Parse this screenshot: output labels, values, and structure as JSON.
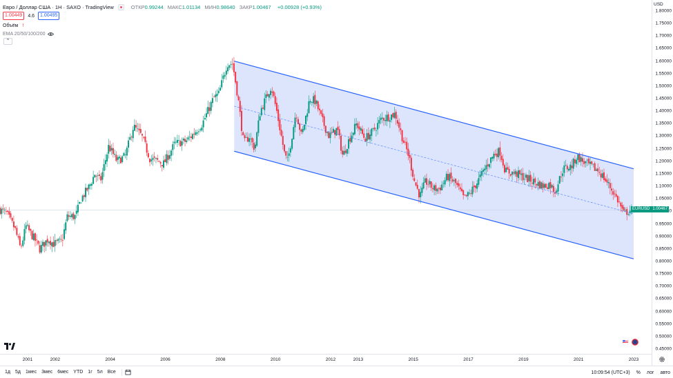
{
  "header": {
    "symbol_title": "Евро / Доллар США · 1Н · SAXO · TradingView",
    "ohlc": {
      "open_label": "ОТКР",
      "open": "0.99244",
      "high_label": "МАКС",
      "high": "1.01134",
      "low_label": "МИН",
      "low": "0.98640",
      "close_label": "ЗАКР",
      "close": "1.00467",
      "change": "+0.00928 (+0.93%)"
    },
    "sell_price": "1.00449",
    "spread": "4.6",
    "buy_price": "1.00495",
    "volume_label": "Объём",
    "indicator_label": "EMA 20/50/100/200"
  },
  "price_scale": {
    "currency": "USD",
    "ticks": [
      "1.80000",
      "1.75000",
      "1.70000",
      "1.65000",
      "1.60000",
      "1.55000",
      "1.50000",
      "1.45000",
      "1.40000",
      "1.35000",
      "1.30000",
      "1.25000",
      "1.20000",
      "1.15000",
      "1.10000",
      "1.05000",
      "1.00000",
      "0.95000",
      "0.90000",
      "0.85000",
      "0.80000",
      "0.75000",
      "0.70000",
      "0.65000",
      "0.60000",
      "0.55000",
      "0.50000",
      "0.45000"
    ],
    "current_label": "EURUSD",
    "current_value": "1.00467"
  },
  "time_axis": {
    "ticks": [
      "2001",
      "2002",
      "2004",
      "2006",
      "2008",
      "2010",
      "2012",
      "2013",
      "2015",
      "2017",
      "2019",
      "2021",
      "2023"
    ]
  },
  "bottom_bar": {
    "ranges": [
      "1д",
      "5д",
      "1мес",
      "3мес",
      "6мес",
      "YTD",
      "1г",
      "5л",
      "Все"
    ],
    "clock": "10:09:54 (UTC+3)",
    "percent": "%",
    "log": "лог",
    "auto": "авто"
  },
  "colors": {
    "up": "#089981",
    "down": "#f23645",
    "channel_line": "#2962ff",
    "channel_fill": "#d6e0fb"
  },
  "chart_data": {
    "type": "candlestick",
    "title": "Евро / Доллар США · 1Н · SAXO · TradingView",
    "ylim": [
      0.45,
      1.8
    ],
    "x_range": [
      2000.0,
      2023.0
    ],
    "y_scale": "linear",
    "grid": false,
    "channel": {
      "upper": [
        [
          2008.5,
          1.6
        ],
        [
          2023.0,
          1.17
        ]
      ],
      "lower": [
        [
          2008.5,
          1.24
        ],
        [
          2023.0,
          0.81
        ]
      ],
      "median_dashed": [
        [
          2008.5,
          1.42
        ],
        [
          2023.0,
          0.99
        ]
      ]
    },
    "path": [
      [
        2000.0,
        1.01
      ],
      [
        2000.3,
        0.99
      ],
      [
        2000.6,
        0.93
      ],
      [
        2000.8,
        0.85
      ],
      [
        2001.0,
        0.94
      ],
      [
        2001.3,
        0.89
      ],
      [
        2001.5,
        0.85
      ],
      [
        2001.8,
        0.89
      ],
      [
        2002.0,
        0.87
      ],
      [
        2002.3,
        0.88
      ],
      [
        2002.5,
        0.98
      ],
      [
        2002.8,
        0.98
      ],
      [
        2003.0,
        1.05
      ],
      [
        2003.3,
        1.1
      ],
      [
        2003.5,
        1.15
      ],
      [
        2003.7,
        1.12
      ],
      [
        2004.0,
        1.26
      ],
      [
        2004.3,
        1.2
      ],
      [
        2004.6,
        1.22
      ],
      [
        2004.9,
        1.34
      ],
      [
        2005.2,
        1.3
      ],
      [
        2005.5,
        1.21
      ],
      [
        2005.8,
        1.2
      ],
      [
        2006.0,
        1.19
      ],
      [
        2006.4,
        1.27
      ],
      [
        2006.8,
        1.28
      ],
      [
        2007.0,
        1.3
      ],
      [
        2007.4,
        1.35
      ],
      [
        2007.8,
        1.45
      ],
      [
        2008.0,
        1.47
      ],
      [
        2008.3,
        1.59
      ],
      [
        2008.5,
        1.59
      ],
      [
        2008.7,
        1.45
      ],
      [
        2008.9,
        1.27
      ],
      [
        2009.1,
        1.3
      ],
      [
        2009.3,
        1.25
      ],
      [
        2009.5,
        1.4
      ],
      [
        2009.9,
        1.5
      ],
      [
        2010.1,
        1.4
      ],
      [
        2010.4,
        1.22
      ],
      [
        2010.5,
        1.2
      ],
      [
        2010.8,
        1.4
      ],
      [
        2011.0,
        1.3
      ],
      [
        2011.3,
        1.45
      ],
      [
        2011.5,
        1.44
      ],
      [
        2011.8,
        1.35
      ],
      [
        2012.0,
        1.3
      ],
      [
        2012.3,
        1.33
      ],
      [
        2012.5,
        1.22
      ],
      [
        2012.7,
        1.28
      ],
      [
        2013.0,
        1.35
      ],
      [
        2013.3,
        1.29
      ],
      [
        2013.6,
        1.32
      ],
      [
        2013.9,
        1.37
      ],
      [
        2014.2,
        1.38
      ],
      [
        2014.4,
        1.39
      ],
      [
        2014.7,
        1.28
      ],
      [
        2014.9,
        1.22
      ],
      [
        2015.1,
        1.12
      ],
      [
        2015.3,
        1.06
      ],
      [
        2015.5,
        1.12
      ],
      [
        2015.8,
        1.09
      ],
      [
        2016.0,
        1.09
      ],
      [
        2016.3,
        1.14
      ],
      [
        2016.6,
        1.11
      ],
      [
        2016.9,
        1.05
      ],
      [
        2017.1,
        1.07
      ],
      [
        2017.4,
        1.12
      ],
      [
        2017.7,
        1.18
      ],
      [
        2018.0,
        1.23
      ],
      [
        2018.2,
        1.24
      ],
      [
        2018.4,
        1.16
      ],
      [
        2018.8,
        1.15
      ],
      [
        2019.0,
        1.14
      ],
      [
        2019.4,
        1.12
      ],
      [
        2019.8,
        1.1
      ],
      [
        2020.0,
        1.11
      ],
      [
        2020.2,
        1.08
      ],
      [
        2020.5,
        1.17
      ],
      [
        2020.8,
        1.18
      ],
      [
        2021.0,
        1.22
      ],
      [
        2021.2,
        1.2
      ],
      [
        2021.5,
        1.18
      ],
      [
        2021.8,
        1.16
      ],
      [
        2022.0,
        1.13
      ],
      [
        2022.3,
        1.08
      ],
      [
        2022.5,
        1.04
      ],
      [
        2022.7,
        0.99
      ],
      [
        2022.9,
        1.00467
      ]
    ]
  }
}
